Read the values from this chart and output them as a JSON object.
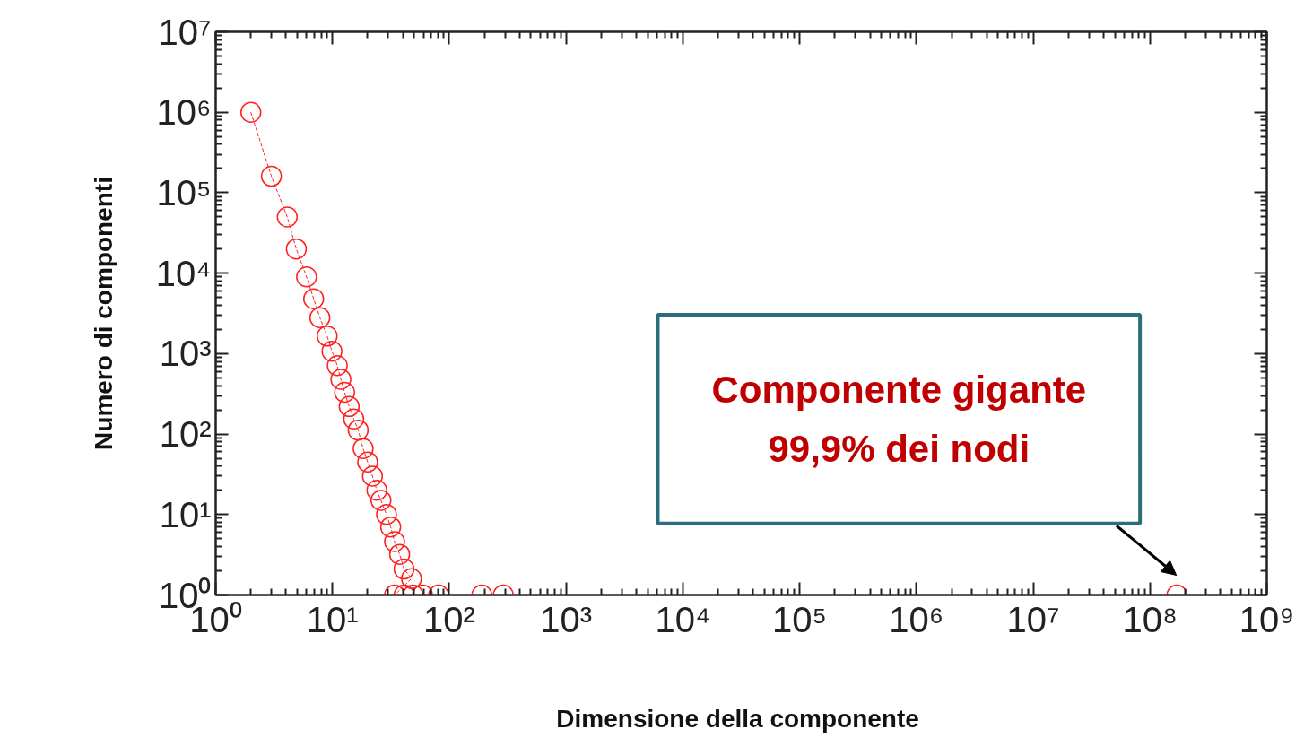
{
  "chart_data": {
    "type": "line",
    "marker": "circle",
    "line_style": "dashed",
    "log": "xy",
    "grid": false,
    "xlabel": "Dimensione della  componente",
    "ylabel": "Numero di componenti",
    "annotations": [
      "Componente gigante\n99,9% dei nodi"
    ],
    "xlim": [
      1,
      1000000000
    ],
    "ylim": [
      1,
      10000000
    ],
    "xticks": [
      {
        "value": 1,
        "label": "10⁰"
      },
      {
        "value": 10,
        "label": "10¹"
      },
      {
        "value": 100,
        "label": "10²"
      },
      {
        "value": 1000,
        "label": "10³"
      },
      {
        "value": 10000,
        "label": "10⁴"
      },
      {
        "value": 100000,
        "label": "10⁵"
      },
      {
        "value": 1000000,
        "label": "10⁶"
      },
      {
        "value": 10000000,
        "label": "10⁷"
      },
      {
        "value": 100000000,
        "label": "10⁸"
      },
      {
        "value": 1000000000,
        "label": "10⁹"
      }
    ],
    "yticks": [
      {
        "value": 1,
        "label": "10⁰"
      },
      {
        "value": 10,
        "label": "10¹"
      },
      {
        "value": 100,
        "label": "10²"
      },
      {
        "value": 1000,
        "label": "10³"
      },
      {
        "value": 10000,
        "label": "10⁴"
      },
      {
        "value": 100000,
        "label": "10⁵"
      },
      {
        "value": 1000000,
        "label": "10⁶"
      },
      {
        "value": 10000000,
        "label": "10⁷"
      }
    ],
    "series": [
      {
        "color": "#ff2020",
        "x": [
          2,
          3,
          4.1,
          4.9,
          6,
          6.9,
          7.8,
          9,
          9.9,
          11,
          11.8,
          12.7,
          13.9,
          15.2,
          16.6,
          18.3,
          20,
          22,
          24,
          26,
          29,
          31.5,
          34,
          37.6,
          41,
          47.5,
          34,
          41,
          49,
          59,
          81,
          190,
          290,
          170000000
        ],
        "values": [
          1000000,
          160000,
          50000,
          20000,
          9000,
          4800,
          2800,
          1650,
          1070,
          710,
          480,
          330,
          220,
          154,
          112,
          66,
          45,
          30,
          20,
          15,
          10,
          7,
          4.6,
          3.2,
          2.1,
          1.6,
          1,
          1,
          1,
          1,
          1,
          1,
          1,
          1
        ]
      }
    ]
  }
}
